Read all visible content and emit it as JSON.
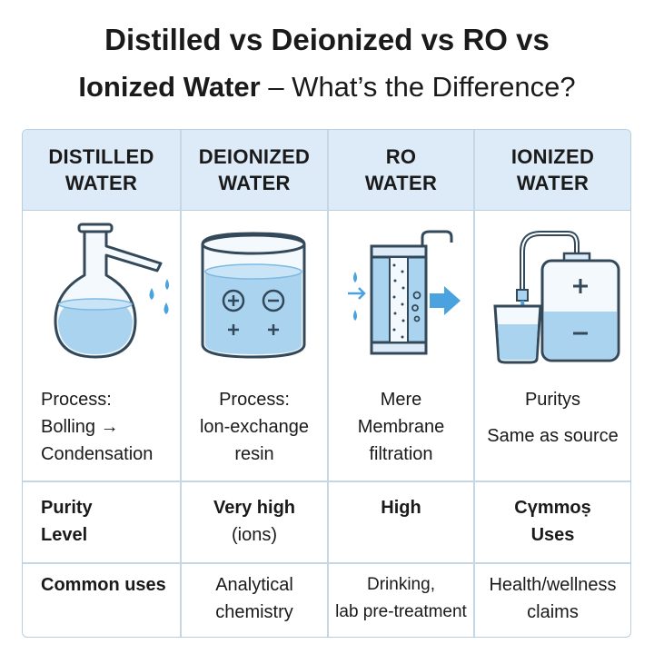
{
  "title": {
    "line1": "Distilled vs Deionized vs RO vs",
    "line2_bold": "Ionized Water",
    "line2_rest": " – What’s the Difference?"
  },
  "columns": [
    {
      "header": "DISTILLED\nWATER",
      "icon": "flask-distillation-icon"
    },
    {
      "header": "DEIONIZED\nWATER",
      "icon": "ion-exchange-beaker-icon"
    },
    {
      "header": "RO\nWATER",
      "icon": "membrane-filter-icon"
    },
    {
      "header": "IONIZED\nWATER",
      "icon": "ionizer-tank-icon"
    }
  ],
  "rows": {
    "process": [
      "Process:\nBolling →\nCondensation",
      "Process:\nlon-exchange\nresin",
      "Mere\nMembrane\nfiltration",
      "Puritys\n\nSame as source"
    ],
    "purity": [
      "Purity\nLevel",
      "Very high\n(ions)",
      "High",
      "Cүmmoṣ\nUses"
    ],
    "uses": [
      "Common uses",
      "Analytical\nchemistry",
      "Drinking,\nlab pre-treatment",
      "Health/wellness\nclaims"
    ]
  },
  "colors": {
    "header_bg": "#dcebf7",
    "border": "#b9cfe0",
    "water": "#a9d3ef",
    "water_dark": "#7db9e2",
    "stroke": "#33495a",
    "accent": "#4aa3df"
  }
}
